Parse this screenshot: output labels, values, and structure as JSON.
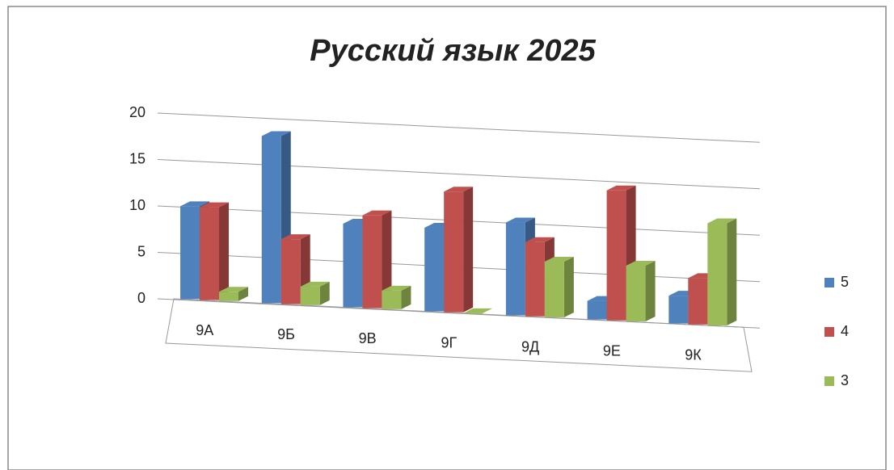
{
  "chart_data": {
    "type": "bar3d",
    "title": "Русский язык 2025",
    "categories": [
      "9А",
      "9Б",
      "9В",
      "9Г",
      "9Д",
      "9Е",
      "9К"
    ],
    "series": [
      {
        "name": "5",
        "color": "#4f81bd",
        "values": [
          10,
          18,
          9,
          9,
          10,
          2,
          3
        ]
      },
      {
        "name": "4",
        "color": "#c0504d",
        "values": [
          10,
          7,
          10,
          13,
          8,
          14,
          5
        ]
      },
      {
        "name": "3",
        "color": "#9bbb59",
        "values": [
          1,
          2,
          2,
          0,
          6,
          6,
          11
        ]
      }
    ],
    "ylim": [
      0,
      20
    ],
    "yticks": [
      0,
      5,
      10,
      15,
      20
    ],
    "grid": true,
    "legend": "right"
  }
}
